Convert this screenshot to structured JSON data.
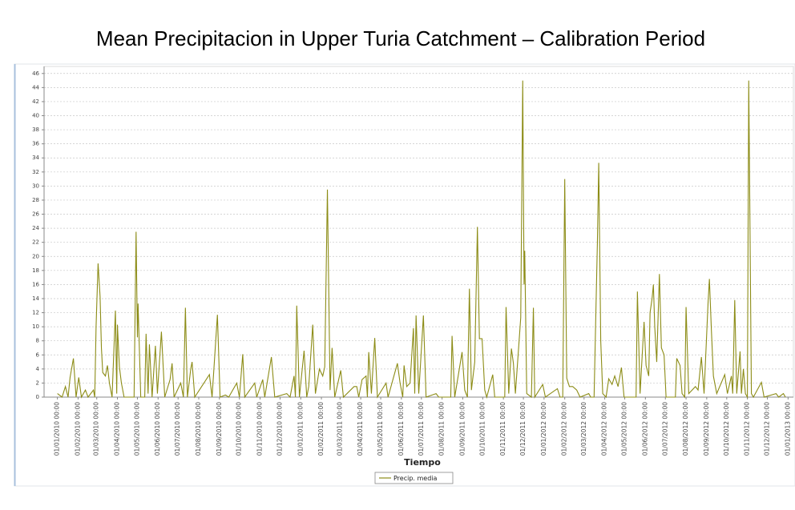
{
  "chart_data": {
    "type": "line",
    "title": "Mean Precipitacion in Upper Turia Catchment – Calibration Period",
    "xlabel": "Tiempo",
    "xlim": [
      "2009-12-12",
      "2013-01-09"
    ],
    "ylim": [
      0,
      47
    ],
    "yticks": [
      0,
      2,
      4,
      6,
      8,
      10,
      12,
      14,
      16,
      18,
      20,
      22,
      24,
      26,
      28,
      30,
      32,
      34,
      36,
      38,
      40,
      42,
      44,
      46
    ],
    "xticks": [
      {
        "value": "2010-01-01",
        "label": "01/01/2010 00:00"
      },
      {
        "value": "2010-02-01",
        "label": "01/02/2010 00:00"
      },
      {
        "value": "2010-03-01",
        "label": "01/03/2010 00:00"
      },
      {
        "value": "2010-04-01",
        "label": "01/04/2010 00:00"
      },
      {
        "value": "2010-05-01",
        "label": "01/05/2010 00:00"
      },
      {
        "value": "2010-06-01",
        "label": "01/06/2010 00:00"
      },
      {
        "value": "2010-07-01",
        "label": "01/07/2010 00:00"
      },
      {
        "value": "2010-08-01",
        "label": "01/08/2010 00:00"
      },
      {
        "value": "2010-09-01",
        "label": "01/09/2010 00:00"
      },
      {
        "value": "2010-10-01",
        "label": "01/10/2010 00:00"
      },
      {
        "value": "2010-11-01",
        "label": "01/11/2010 00:00"
      },
      {
        "value": "2010-12-01",
        "label": "01/12/2010 00:00"
      },
      {
        "value": "2011-01-01",
        "label": "01/01/2011 00:00"
      },
      {
        "value": "2011-02-01",
        "label": "01/02/2011 00:00"
      },
      {
        "value": "2011-03-01",
        "label": "01/03/2011 00:00"
      },
      {
        "value": "2011-04-01",
        "label": "01/04/2011 00:00"
      },
      {
        "value": "2011-05-01",
        "label": "01/05/2011 00:00"
      },
      {
        "value": "2011-06-01",
        "label": "01/06/2011 00:00"
      },
      {
        "value": "2011-07-01",
        "label": "01/07/2011 00:00"
      },
      {
        "value": "2011-08-01",
        "label": "01/08/2011 00:00"
      },
      {
        "value": "2011-09-01",
        "label": "01/09/2011 00:00"
      },
      {
        "value": "2011-10-01",
        "label": "01/10/2011 00:00"
      },
      {
        "value": "2011-11-01",
        "label": "01/11/2011 00:00"
      },
      {
        "value": "2011-12-01",
        "label": "01/12/2011 00:00"
      },
      {
        "value": "2012-01-01",
        "label": "01/01/2012 00:00"
      },
      {
        "value": "2012-02-01",
        "label": "01/02/2012 00:00"
      },
      {
        "value": "2012-03-01",
        "label": "01/03/2012 00:00"
      },
      {
        "value": "2012-04-01",
        "label": "01/04/2012 00:00"
      },
      {
        "value": "2012-05-01",
        "label": "01/05/2012 00:00"
      },
      {
        "value": "2012-06-01",
        "label": "01/06/2012 00:00"
      },
      {
        "value": "2012-07-01",
        "label": "01/07/2012 00:00"
      },
      {
        "value": "2012-08-01",
        "label": "01/08/2012 00:00"
      },
      {
        "value": "2012-09-01",
        "label": "01/09/2012 00:00"
      },
      {
        "value": "2012-10-01",
        "label": "01/10/2012 00:00"
      },
      {
        "value": "2012-11-01",
        "label": "01/11/2012 00:00"
      },
      {
        "value": "2012-12-01",
        "label": "01/12/2012 00:00"
      },
      {
        "value": "2013-01-01",
        "label": "01/01/2013 00:00"
      }
    ],
    "grid": true,
    "legend": "bottom",
    "x": [
      "2010-01-01",
      "2010-01-08",
      "2010-01-13",
      "2010-01-17",
      "2010-01-20",
      "2010-01-25",
      "2010-01-29",
      "2010-02-02",
      "2010-02-06",
      "2010-02-12",
      "2010-02-16",
      "2010-02-24",
      "2010-02-26",
      "2010-02-28",
      "2010-03-03",
      "2010-03-06",
      "2010-03-08",
      "2010-03-10",
      "2010-03-14",
      "2010-03-17",
      "2010-03-20",
      "2010-03-24",
      "2010-03-29",
      "2010-03-31",
      "2010-04-01",
      "2010-04-04",
      "2010-04-07",
      "2010-04-11",
      "2010-04-26",
      "2010-04-29",
      "2010-05-01",
      "2010-05-02",
      "2010-05-06",
      "2010-05-12",
      "2010-05-14",
      "2010-05-17",
      "2010-05-19",
      "2010-05-23",
      "2010-05-28",
      "2010-05-31",
      "2010-06-06",
      "2010-06-11",
      "2010-06-19",
      "2010-06-22",
      "2010-06-25",
      "2010-07-05",
      "2010-07-09",
      "2010-07-12",
      "2010-07-15",
      "2010-07-20",
      "2010-07-22",
      "2010-07-26",
      "2010-08-17",
      "2010-08-21",
      "2010-08-29",
      "2010-09-02",
      "2010-09-10",
      "2010-09-15",
      "2010-09-27",
      "2010-10-01",
      "2010-10-06",
      "2010-10-09",
      "2010-10-24",
      "2010-10-27",
      "2010-11-05",
      "2010-11-08",
      "2010-11-18",
      "2010-11-23",
      "2010-12-11",
      "2010-12-16",
      "2010-12-22",
      "2010-12-24",
      "2010-12-26",
      "2010-12-30",
      "2011-01-06",
      "2011-01-10",
      "2011-01-13",
      "2011-01-19",
      "2011-01-23",
      "2011-01-29",
      "2011-02-03",
      "2011-02-06",
      "2011-02-10",
      "2011-02-14",
      "2011-02-17",
      "2011-02-21",
      "2011-03-02",
      "2011-03-06",
      "2011-03-22",
      "2011-03-26",
      "2011-03-29",
      "2011-04-03",
      "2011-04-09",
      "2011-04-11",
      "2011-04-13",
      "2011-04-17",
      "2011-04-22",
      "2011-04-26",
      "2011-05-09",
      "2011-05-12",
      "2011-05-26",
      "2011-05-30",
      "2011-06-03",
      "2011-06-05",
      "2011-06-09",
      "2011-06-14",
      "2011-06-19",
      "2011-06-21",
      "2011-06-23",
      "2011-06-27",
      "2011-07-04",
      "2011-07-08",
      "2011-07-23",
      "2011-07-27",
      "2011-08-14",
      "2011-08-16",
      "2011-08-20",
      "2011-08-31",
      "2011-09-04",
      "2011-09-08",
      "2011-09-11",
      "2011-09-14",
      "2011-09-19",
      "2011-09-23",
      "2011-09-26",
      "2011-09-30",
      "2011-10-04",
      "2011-10-07",
      "2011-10-16",
      "2011-10-19",
      "2011-11-03",
      "2011-11-05",
      "2011-11-09",
      "2011-11-13",
      "2011-11-16",
      "2011-11-19",
      "2011-11-27",
      "2011-11-30",
      "2011-12-02",
      "2011-12-03",
      "2011-12-06",
      "2011-12-13",
      "2011-12-16",
      "2011-12-18",
      "2011-12-30",
      "2012-01-03",
      "2012-01-21",
      "2012-01-25",
      "2012-01-29",
      "2012-02-01",
      "2012-02-04",
      "2012-02-08",
      "2012-02-13",
      "2012-02-19",
      "2012-02-24",
      "2012-03-08",
      "2012-03-11",
      "2012-03-16",
      "2012-03-19",
      "2012-03-21",
      "2012-03-23",
      "2012-03-26",
      "2012-03-29",
      "2012-04-03",
      "2012-04-07",
      "2012-04-12",
      "2012-04-16",
      "2012-04-21",
      "2012-04-26",
      "2012-04-30",
      "2012-05-18",
      "2012-05-20",
      "2012-05-24",
      "2012-05-30",
      "2012-06-02",
      "2012-06-06",
      "2012-06-08",
      "2012-06-11",
      "2012-06-13",
      "2012-06-15",
      "2012-06-18",
      "2012-06-22",
      "2012-06-25",
      "2012-06-29",
      "2012-07-02",
      "2012-07-16",
      "2012-07-18",
      "2012-07-23",
      "2012-07-26",
      "2012-07-30",
      "2012-08-01",
      "2012-08-05",
      "2012-08-15",
      "2012-08-19",
      "2012-08-24",
      "2012-08-28",
      "2012-09-03",
      "2012-09-05",
      "2012-09-08",
      "2012-09-11",
      "2012-09-16",
      "2012-09-28",
      "2012-10-02",
      "2012-10-08",
      "2012-10-10",
      "2012-10-13",
      "2012-10-16",
      "2012-10-21",
      "2012-10-23",
      "2012-10-26",
      "2012-10-29",
      "2012-11-01",
      "2012-11-03",
      "2012-11-07",
      "2012-11-10",
      "2012-11-22",
      "2012-11-26",
      "2012-12-14",
      "2012-12-18",
      "2012-12-25",
      "2012-12-28"
    ],
    "series": [
      {
        "name": "Precip. media",
        "color": "#8c8c16",
        "values": [
          0.5,
          0,
          1.5,
          0,
          2.8,
          5.5,
          0,
          2.8,
          0,
          1,
          0,
          1,
          0,
          10,
          19,
          14.3,
          7,
          3.5,
          3,
          4.5,
          2,
          0,
          12.3,
          0.5,
          10.3,
          4.3,
          2,
          0,
          0,
          23.5,
          8.5,
          13.3,
          0,
          0,
          9,
          0.5,
          7.5,
          0,
          7.3,
          0.5,
          9.3,
          0,
          2.5,
          4.8,
          0,
          2,
          0,
          12.7,
          0,
          4,
          5,
          0,
          3.2,
          0,
          11.7,
          0,
          0.3,
          0,
          2,
          0,
          6.1,
          0,
          2,
          0,
          2.5,
          0,
          5.7,
          0,
          0.5,
          0,
          3,
          0,
          13,
          0,
          6.6,
          0,
          1.5,
          10.3,
          0.5,
          4,
          3,
          4.3,
          29.5,
          1,
          7,
          0,
          3.8,
          0,
          1.5,
          1.5,
          0,
          2.5,
          3,
          0,
          6.4,
          0.5,
          8.4,
          0,
          2,
          0,
          4.8,
          2,
          0,
          4.5,
          1.5,
          2,
          9.8,
          0.5,
          11.6,
          0.5,
          11.6,
          0,
          0.5,
          0,
          0,
          8.7,
          0,
          6.4,
          1,
          0,
          15.4,
          1,
          5,
          24.2,
          8.3,
          8.3,
          1,
          0,
          3.2,
          0,
          0,
          12.8,
          0.5,
          6.9,
          4.8,
          0.5,
          11.3,
          45,
          16,
          20.8,
          0.5,
          0,
          12.7,
          0,
          1.8,
          0,
          1.2,
          0,
          0,
          31,
          2.7,
          1.5,
          1.5,
          1,
          0,
          0.5,
          0,
          0,
          13.3,
          22,
          33.3,
          8,
          0.5,
          0,
          2.6,
          1.8,
          3,
          1.5,
          4.2,
          0,
          0,
          15,
          0.5,
          10.7,
          4.5,
          3,
          12,
          14,
          16,
          10,
          5,
          17.5,
          7,
          6,
          0,
          0,
          5.5,
          4.5,
          0.5,
          0,
          12.8,
          0.5,
          1.5,
          1,
          5.7,
          0.5,
          13.4,
          16.8,
          9.5,
          3,
          0.5,
          3.2,
          0.5,
          3,
          0.5,
          13.8,
          0.5,
          6.5,
          0.5,
          4,
          0.5,
          0,
          45,
          0.5,
          0,
          2.1,
          0,
          0.5,
          0,
          0.5,
          0
        ]
      }
    ]
  }
}
